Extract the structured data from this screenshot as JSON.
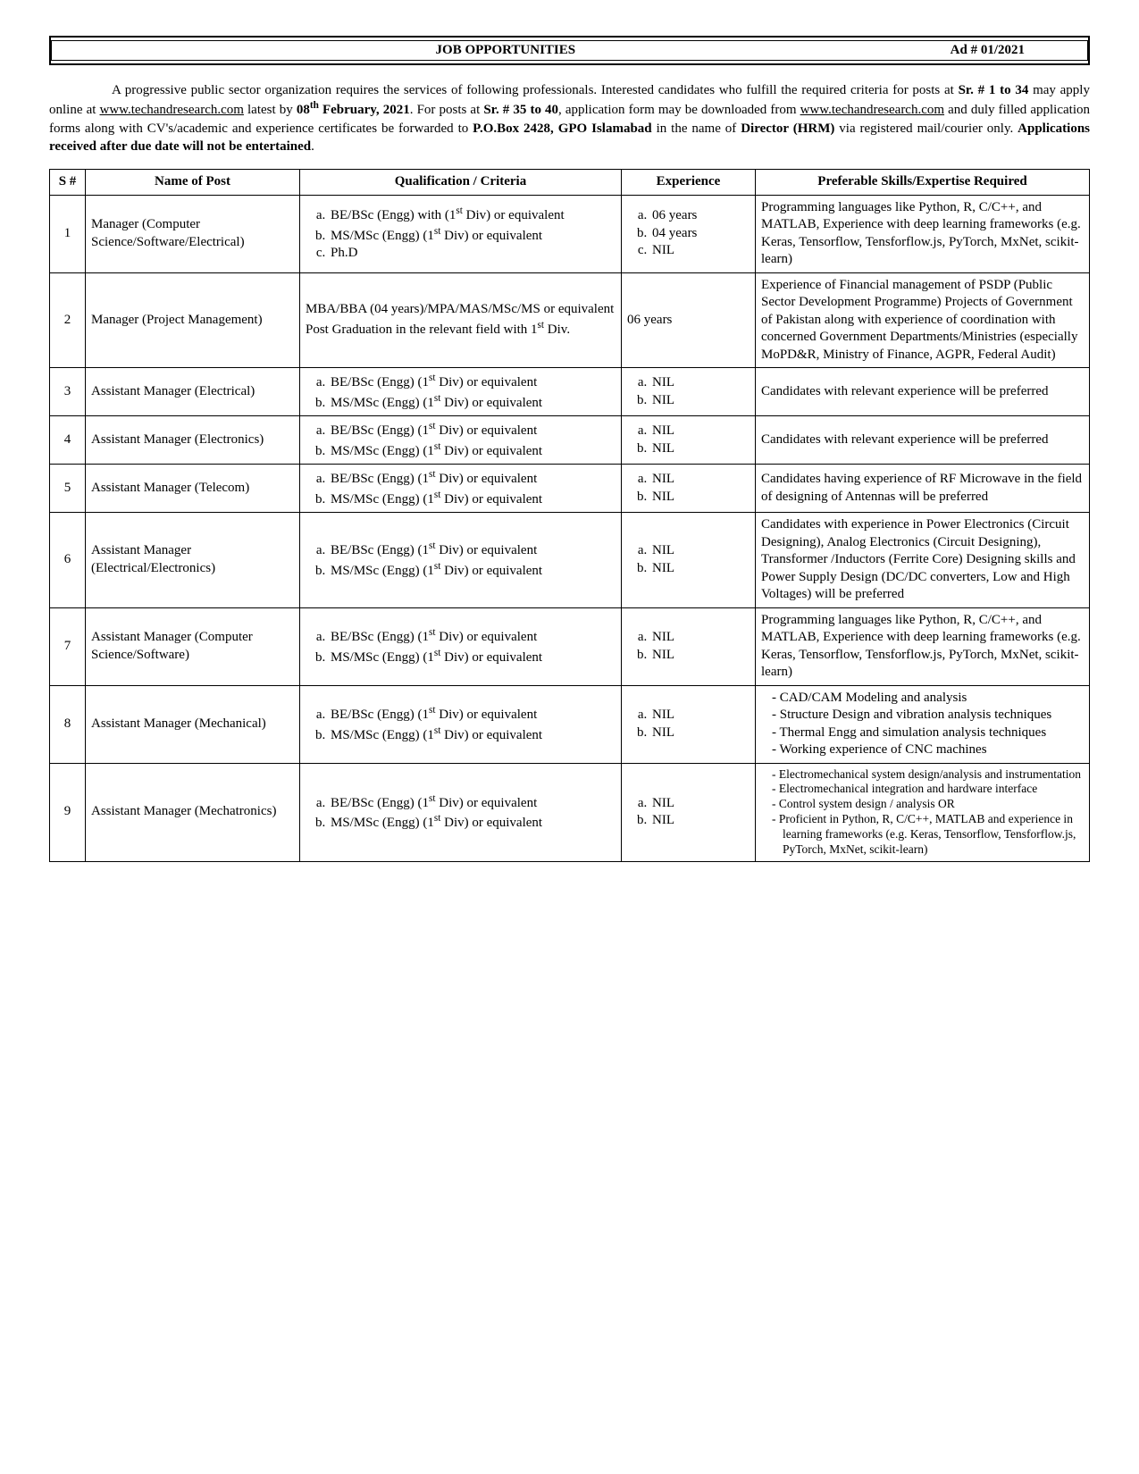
{
  "header": {
    "title": "JOB OPPORTUNITIES",
    "ad": "Ad # 01/2021"
  },
  "intro": {
    "p1a": "A progressive public sector organization requires the services of following professionals. Interested candidates who fulfill the required criteria for posts at ",
    "bold1": "Sr. # 1 to 34",
    "p1b": " may apply online at ",
    "url": "www.techandresearch.com",
    "p1c": " latest by ",
    "bold2": "08",
    "sup2": "th",
    "bold2b": " February, 2021",
    "p1d": ". For posts at ",
    "bold3": "Sr. # 35 to 40",
    "p1e": ", application form may be downloaded from ",
    "p1f": " and duly filled application forms along with CV's/academic and experience certificates be forwarded to ",
    "bold4": "P.O.Box 2428, GPO Islamabad",
    "p1g": " in the name of ",
    "bold5": "Director (HRM)",
    "p1h": " via registered mail/courier only. ",
    "bold6": "Applications received after due date will not be entertained",
    "p1i": "."
  },
  "table": {
    "headers": {
      "sn": "S #",
      "post": "Name of Post",
      "qual": "Qualification / Criteria",
      "exp": "Experience",
      "skill": "Preferable Skills/Expertise Required"
    },
    "rows": [
      {
        "sn": "1",
        "post": "Manager (Computer Science/Software/Electrical)",
        "qual_ol": [
          "BE/BSc (Engg) with (1<sup>st</sup> Div) or equivalent",
          "MS/MSc (Engg) (1<sup>st</sup> Div) or equivalent",
          "Ph.D"
        ],
        "exp_ol": [
          "06 years",
          "04 years",
          "NIL"
        ],
        "skill_text": "Programming languages like Python, R, C/C++, and MATLAB, Experience with deep learning frameworks (e.g. Keras, Tensorflow, Tensforflow.js, PyTorch, MxNet, scikit-learn)"
      },
      {
        "sn": "2",
        "post": "Manager (Project Management)",
        "qual_text": "MBA/BBA (04 years)/MPA/MAS/MSc/MS or equivalent Post Graduation in the relevant field with 1<sup>st</sup> Div.",
        "exp_text": "06 years",
        "skill_text": "Experience of Financial management of PSDP (Public Sector Development Programme) Projects of Government of Pakistan along with experience of coordination with concerned Government Departments/Ministries (especially MoPD&R, Ministry of Finance, AGPR, Federal Audit)"
      },
      {
        "sn": "3",
        "post": "Assistant Manager (Electrical)",
        "qual_ol": [
          "BE/BSc (Engg) (1<sup>st</sup> Div) or equivalent",
          "MS/MSc (Engg) (1<sup>st</sup> Div) or equivalent"
        ],
        "exp_ol": [
          "NIL",
          "NIL"
        ],
        "skill_text": "Candidates with relevant experience will be preferred"
      },
      {
        "sn": "4",
        "post": "Assistant Manager (Electronics)",
        "qual_ol": [
          "BE/BSc (Engg) (1<sup>st</sup> Div) or equivalent",
          "MS/MSc (Engg) (1<sup>st</sup> Div) or equivalent"
        ],
        "exp_ol": [
          "NIL",
          "NIL"
        ],
        "skill_text": "Candidates with relevant experience will be preferred"
      },
      {
        "sn": "5",
        "post": "Assistant Manager (Telecom)",
        "qual_ol": [
          "BE/BSc (Engg) (1<sup>st</sup> Div) or equivalent",
          "MS/MSc (Engg) (1<sup>st</sup> Div) or equivalent"
        ],
        "exp_ol": [
          "NIL",
          "NIL"
        ],
        "skill_text": "Candidates having experience of RF Microwave in the field of designing of Antennas will be preferred"
      },
      {
        "sn": "6",
        "post": "Assistant Manager (Electrical/Electronics)",
        "qual_ol": [
          "BE/BSc (Engg) (1<sup>st</sup> Div) or equivalent",
          "MS/MSc (Engg) (1<sup>st</sup> Div) or equivalent"
        ],
        "exp_ol": [
          "NIL",
          "NIL"
        ],
        "skill_text": "Candidates with experience in Power Electronics (Circuit Designing), Analog Electronics (Circuit Designing), Transformer /Inductors (Ferrite Core) Designing skills and Power Supply Design (DC/DC converters, Low and High Voltages) will be preferred"
      },
      {
        "sn": "7",
        "post": "Assistant Manager (Computer Science/Software)",
        "qual_ol": [
          "BE/BSc (Engg) (1<sup>st</sup> Div) or equivalent",
          "MS/MSc (Engg) (1<sup>st</sup> Div) or equivalent"
        ],
        "exp_ol": [
          "NIL",
          "NIL"
        ],
        "skill_text": "Programming languages like Python, R, C/C++, and MATLAB, Experience with deep learning frameworks (e.g. Keras, Tensorflow, Tensforflow.js, PyTorch, MxNet, scikit-learn)"
      },
      {
        "sn": "8",
        "post": "Assistant Manager (Mechanical)",
        "qual_ol": [
          "BE/BSc (Engg) (1<sup>st</sup> Div) or equivalent",
          "MS/MSc (Engg) (1<sup>st</sup> Div) or equivalent"
        ],
        "exp_ol": [
          "NIL",
          "NIL"
        ],
        "skill_ul": [
          "CAD/CAM Modeling and analysis",
          "Structure Design and vibration analysis techniques",
          "Thermal Engg and simulation analysis techniques",
          "Working experience of CNC machines"
        ]
      },
      {
        "sn": "9",
        "post": "Assistant Manager (Mechatronics)",
        "qual_ol": [
          "BE/BSc (Engg) (1<sup>st</sup> Div) or equivalent",
          "MS/MSc (Engg) (1<sup>st</sup> Div) or equivalent"
        ],
        "exp_ol": [
          "NIL",
          "NIL"
        ],
        "skill_ul_small": [
          "Electromechanical system design/analysis and instrumentation",
          "Electromechanical integration and hardware interface",
          "Control system design / analysis OR",
          "Proficient in Python, R, C/C++, MATLAB and experience in learning frameworks (e.g. Keras, Tensorflow, Tensforflow.js, PyTorch, MxNet, scikit-learn)"
        ]
      }
    ]
  }
}
